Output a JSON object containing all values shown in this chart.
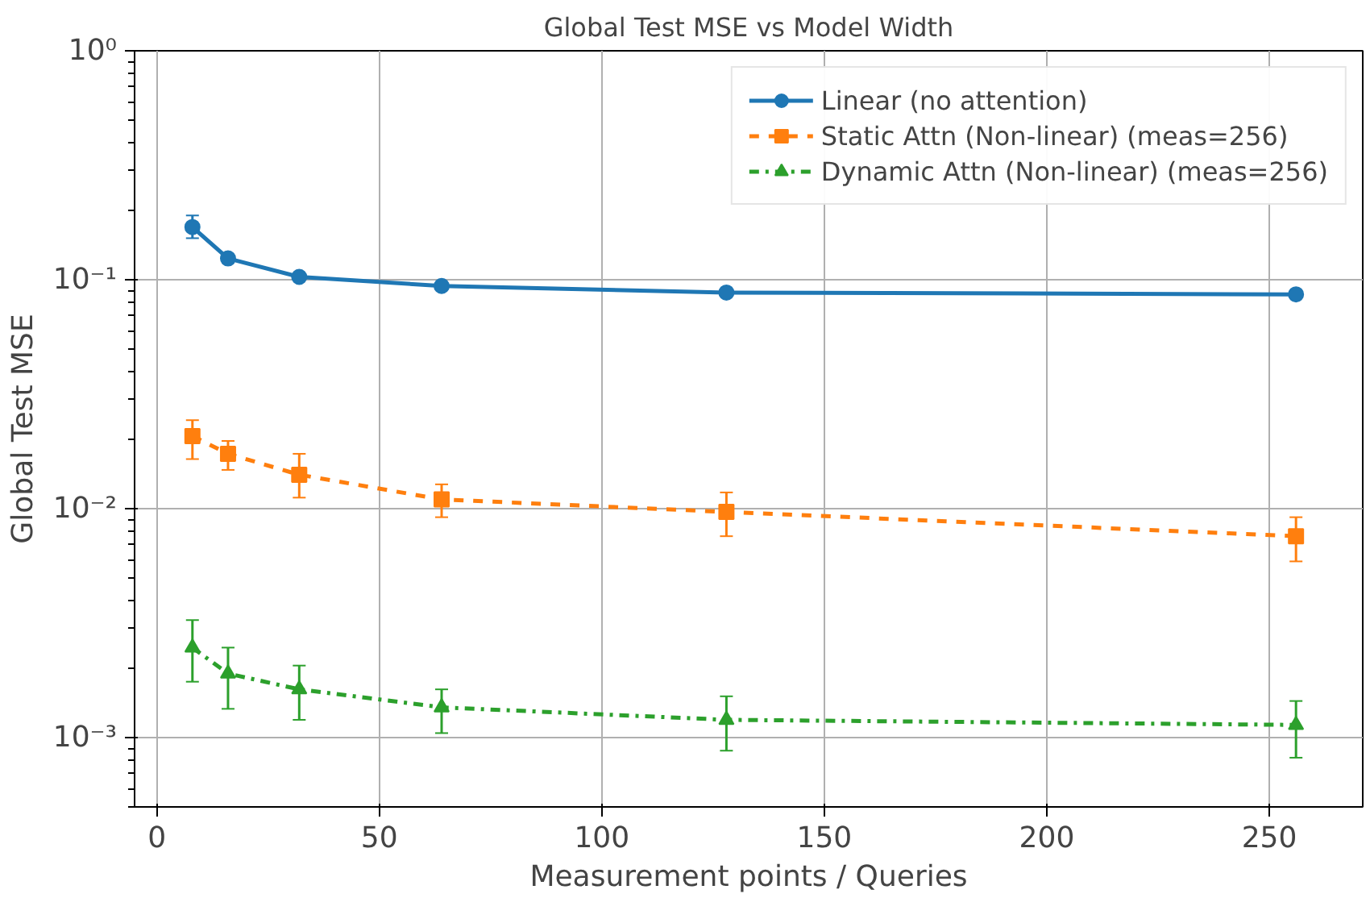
{
  "chart_data": {
    "type": "line",
    "title": "Global Test MSE vs Model Width",
    "xlabel": "Measurement points / Queries",
    "ylabel": "Global Test MSE",
    "x": [
      8,
      16,
      32,
      64,
      128,
      256
    ],
    "series": [
      {
        "name": "Linear (no attention)",
        "color": "#1f77b4",
        "marker": "circle",
        "line_style": "solid",
        "values": [
          0.17,
          0.124,
          0.103,
          0.094,
          0.088,
          0.0864
        ],
        "errors": [
          [
            0.152,
            0.191
          ],
          [
            0.119,
            0.129
          ],
          [
            0.1,
            0.106
          ],
          [
            0.092,
            0.096
          ],
          [
            0.086,
            0.09
          ],
          [
            0.085,
            0.088
          ]
        ]
      },
      {
        "name": "Static Attn (Non-linear) (meas=256)",
        "color": "#ff7f0e",
        "marker": "square",
        "line_style": "dashed",
        "values": [
          0.0208,
          0.0174,
          0.0141,
          0.011,
          0.0097,
          0.0076
        ],
        "errors": [
          [
            0.0165,
            0.0244
          ],
          [
            0.0148,
            0.0198
          ],
          [
            0.0112,
            0.0174
          ],
          [
            0.0092,
            0.0128
          ],
          [
            0.0076,
            0.0118
          ],
          [
            0.0059,
            0.0092
          ]
        ]
      },
      {
        "name": "Dynamic Attn (Non-linear) (meas=256)",
        "color": "#2ca02c",
        "marker": "triangle",
        "line_style": "dashdot",
        "values": [
          0.00248,
          0.00191,
          0.00163,
          0.00136,
          0.0012,
          0.00114
        ],
        "errors": [
          [
            0.00176,
            0.00327
          ],
          [
            0.00134,
            0.00248
          ],
          [
            0.0012,
            0.00207
          ],
          [
            0.00105,
            0.00163
          ],
          [
            0.00088,
            0.00152
          ],
          [
            0.00082,
            0.00145
          ]
        ]
      }
    ],
    "log": "y",
    "xlim": [
      -5,
      271
    ],
    "ylim": [
      0.0005,
      1
    ],
    "xticks": [
      0,
      50,
      100,
      150,
      200,
      250
    ],
    "yticks": [
      {
        "value": 0.001,
        "label": "10⁻³"
      },
      {
        "value": 0.01,
        "label": "10⁻²"
      },
      {
        "value": 0.1,
        "label": "10⁻¹"
      },
      {
        "value": 1,
        "label": "10⁰"
      }
    ],
    "grid": true,
    "legend": "top right"
  }
}
